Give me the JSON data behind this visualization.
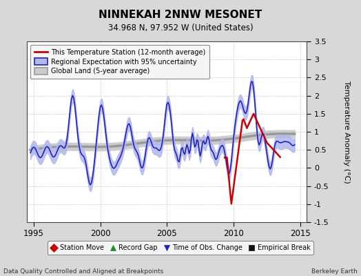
{
  "title": "NINNEKAH 2NNW MESONET",
  "subtitle": "34.968 N, 97.952 W (United States)",
  "ylabel": "Temperature Anomaly (°C)",
  "xlabel_left": "Data Quality Controlled and Aligned at Breakpoints",
  "xlabel_right": "Berkeley Earth",
  "xlim": [
    1994.5,
    2015.5
  ],
  "ylim": [
    -1.5,
    3.5
  ],
  "yticks": [
    -1.5,
    -1.0,
    -0.5,
    0.0,
    0.5,
    1.0,
    1.5,
    2.0,
    2.5,
    3.0,
    3.5
  ],
  "xticks": [
    1995,
    2000,
    2005,
    2010,
    2015
  ],
  "bg_color": "#d8d8d8",
  "plot_bg_color": "#ffffff",
  "regional_color": "#2222bb",
  "regional_fill_color": "#b0b8ee",
  "station_color": "#cc0000",
  "global_color": "#999999",
  "global_fill_color": "#cccccc",
  "legend_station": "This Temperature Station (12-month average)",
  "legend_regional": "Regional Expectation with 95% uncertainty",
  "legend_global": "Global Land (5-year average)",
  "bottom_legend": [
    {
      "label": "Station Move",
      "color": "#cc0000",
      "marker": "D"
    },
    {
      "label": "Record Gap",
      "color": "#228B22",
      "marker": "^"
    },
    {
      "label": "Time of Obs. Change",
      "color": "#2222bb",
      "marker": "v"
    },
    {
      "label": "Empirical Break",
      "color": "#111111",
      "marker": "s"
    }
  ]
}
